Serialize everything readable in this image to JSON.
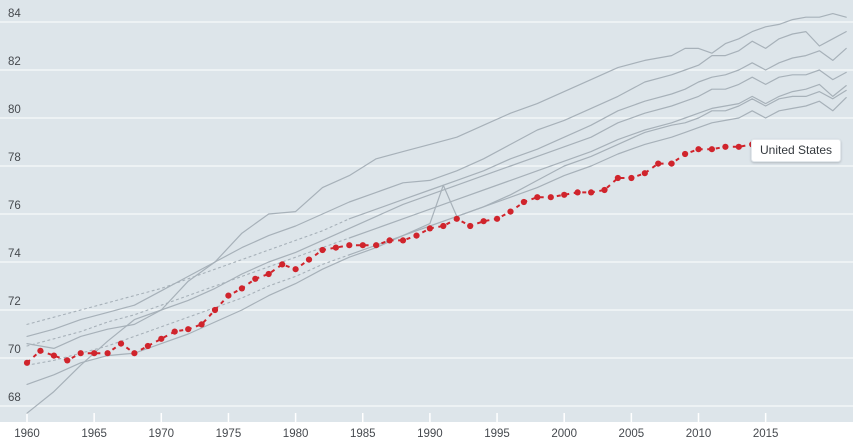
{
  "chart_data": {
    "type": "line",
    "x_axis": {
      "tick_labels": [
        1960,
        1965,
        1970,
        1975,
        1980,
        1985,
        1990,
        1995,
        2000,
        2005,
        2010,
        2015
      ],
      "range": [
        1960,
        2021.5
      ]
    },
    "y_axis": {
      "tick_labels": [
        68,
        70,
        72,
        74,
        76,
        78,
        80,
        82,
        84
      ],
      "range": [
        67.3,
        84.4
      ],
      "grid": true
    },
    "legend_position": "inline-end-label",
    "colors": {
      "plot_background": "#dde5ea",
      "gridline": "#f7fafb",
      "comparison_line": "#a7b1b9",
      "us_line": "#d0242c",
      "axis_text": "#45494e"
    },
    "series": [
      {
        "id": "united-states",
        "label": "United States",
        "style": "dashed-with-dots",
        "color": "us_line",
        "x": [
          1960,
          1961,
          1962,
          1963,
          1964,
          1965,
          1966,
          1967,
          1968,
          1969,
          1970,
          1971,
          1972,
          1973,
          1974,
          1975,
          1976,
          1977,
          1978,
          1979,
          1980,
          1981,
          1982,
          1983,
          1984,
          1985,
          1986,
          1987,
          1988,
          1989,
          1990,
          1991,
          1992,
          1993,
          1994,
          1995,
          1996,
          1997,
          1998,
          1999,
          2000,
          2001,
          2002,
          2003,
          2004,
          2005,
          2006,
          2007,
          2008,
          2009,
          2010,
          2011,
          2012,
          2013,
          2014,
          2015,
          2016,
          2017,
          2018,
          2019,
          2020
        ],
        "values": [
          69.8,
          70.3,
          70.1,
          69.9,
          70.2,
          70.2,
          70.2,
          70.6,
          70.2,
          70.5,
          70.8,
          71.1,
          71.2,
          71.4,
          72.0,
          72.6,
          72.9,
          73.3,
          73.5,
          73.9,
          73.7,
          74.1,
          74.5,
          74.6,
          74.7,
          74.7,
          74.7,
          74.9,
          74.9,
          75.1,
          75.4,
          75.5,
          75.8,
          75.5,
          75.7,
          75.8,
          76.1,
          76.5,
          76.7,
          76.7,
          76.8,
          76.9,
          76.9,
          77.0,
          77.5,
          77.5,
          77.7,
          78.1,
          78.1,
          78.5,
          78.7,
          78.7,
          78.8,
          78.8,
          78.9,
          78.7,
          78.7,
          78.6,
          78.7,
          78.8,
          78.6
        ]
      },
      {
        "id": "comparison-1",
        "label": "",
        "style": "solid",
        "color": "comparison_line",
        "x": [
          1960,
          1962,
          1964,
          1966,
          1968,
          1970,
          1972,
          1974,
          1976,
          1978,
          1980,
          1982,
          1984,
          1986,
          1988,
          1990,
          1992,
          1994,
          1996,
          1998,
          2000,
          2002,
          2004,
          2006,
          2008,
          2009,
          2010,
          2011,
          2012,
          2013,
          2014,
          2015,
          2016,
          2017,
          2018,
          2019,
          2020,
          2021
        ],
        "values": [
          67.7,
          68.6,
          69.7,
          70.7,
          71.6,
          72.0,
          73.2,
          74.0,
          75.2,
          76.0,
          76.1,
          77.1,
          77.6,
          78.3,
          78.6,
          78.9,
          79.2,
          79.7,
          80.2,
          80.6,
          81.1,
          81.6,
          82.1,
          82.4,
          82.6,
          82.9,
          82.9,
          82.7,
          83.1,
          83.3,
          83.6,
          83.8,
          83.9,
          84.1,
          84.2,
          84.2,
          84.35,
          84.2
        ]
      },
      {
        "id": "comparison-2",
        "label": "",
        "style": "solid",
        "color": "comparison_line",
        "x": [
          1960,
          1962,
          1964,
          1966,
          1968,
          1970,
          1972,
          1974,
          1976,
          1978,
          1980,
          1982,
          1984,
          1986,
          1988,
          1990,
          1992,
          1994,
          1996,
          1998,
          2000,
          2002,
          2004,
          2006,
          2008,
          2009,
          2010,
          2011,
          2012,
          2013,
          2014,
          2015,
          2016,
          2017,
          2018,
          2019,
          2020,
          2021
        ],
        "values": [
          70.9,
          71.2,
          71.6,
          71.9,
          72.2,
          72.8,
          73.4,
          74.0,
          74.6,
          75.1,
          75.5,
          76.0,
          76.5,
          76.9,
          77.3,
          77.4,
          77.8,
          78.3,
          78.9,
          79.5,
          79.9,
          80.4,
          80.9,
          81.5,
          81.8,
          82.0,
          82.2,
          82.6,
          82.6,
          82.8,
          83.2,
          82.9,
          83.3,
          83.5,
          83.6,
          83.0,
          83.3,
          83.6
        ]
      },
      {
        "id": "comparison-3-estimated",
        "label": "",
        "style": "dotted",
        "color": "comparison_line",
        "x": [
          1960,
          1962,
          1964,
          1966,
          1968,
          1970,
          1972,
          1974,
          1976,
          1978,
          1980,
          1982,
          1984
        ],
        "values": [
          71.4,
          71.7,
          72.0,
          72.3,
          72.6,
          72.9,
          73.3,
          73.7,
          74.1,
          74.5,
          74.9,
          75.3,
          75.8
        ]
      },
      {
        "id": "comparison-3",
        "label": "",
        "style": "solid",
        "color": "comparison_line",
        "x": [
          1984,
          1986,
          1988,
          1990,
          1992,
          1994,
          1996,
          1998,
          2000,
          2002,
          2004,
          2006,
          2008,
          2009,
          2010,
          2011,
          2012,
          2013,
          2014,
          2015,
          2016,
          2017,
          2018,
          2019,
          2020,
          2021
        ],
        "values": [
          75.8,
          76.2,
          76.6,
          77.0,
          77.4,
          77.8,
          78.3,
          78.7,
          79.2,
          79.7,
          80.3,
          80.7,
          81.0,
          81.2,
          81.5,
          81.7,
          81.8,
          82.0,
          82.3,
          82.0,
          82.3,
          82.5,
          82.6,
          82.8,
          82.4,
          82.9
        ]
      },
      {
        "id": "comparison-4",
        "label": "",
        "style": "solid",
        "color": "comparison_line",
        "x": [
          1960,
          1962,
          1964,
          1966,
          1968,
          1970,
          1972,
          1974,
          1976,
          1978,
          1980,
          1982,
          1984,
          1986,
          1988,
          1990,
          1992,
          1994,
          1996,
          1998,
          2000,
          2002,
          2004,
          2006,
          2008,
          2009,
          2010,
          2011,
          2012,
          2013,
          2014,
          2015,
          2016,
          2017,
          2018,
          2019,
          2020,
          2021
        ],
        "values": [
          70.6,
          70.4,
          70.9,
          71.2,
          71.4,
          72.0,
          72.4,
          72.9,
          73.5,
          74.0,
          74.4,
          74.9,
          75.4,
          75.9,
          76.4,
          76.8,
          77.2,
          77.6,
          78.0,
          78.4,
          78.8,
          79.2,
          79.8,
          80.2,
          80.5,
          80.7,
          80.9,
          81.2,
          81.2,
          81.4,
          81.7,
          81.4,
          81.7,
          81.8,
          81.8,
          82.0,
          81.6,
          81.9
        ]
      },
      {
        "id": "comparison-5-estimated",
        "label": "",
        "style": "dotted",
        "color": "comparison_line",
        "x": [
          1960,
          1962,
          1964,
          1966,
          1968,
          1970,
          1972,
          1974,
          1976,
          1978,
          1980,
          1982,
          1984
        ],
        "values": [
          70.5,
          70.8,
          71.1,
          71.5,
          71.8,
          72.2,
          72.6,
          73.0,
          73.4,
          73.8,
          74.2,
          74.6,
          75.0
        ]
      },
      {
        "id": "comparison-5",
        "label": "",
        "style": "solid",
        "color": "comparison_line",
        "x": [
          1984,
          1986,
          1988,
          1990,
          1992,
          1994,
          1996,
          1998,
          2000,
          2002,
          2004,
          2006,
          2008,
          2009,
          2010,
          2011,
          2012,
          2013,
          2014,
          2015,
          2016,
          2017,
          2018,
          2019,
          2020,
          2021
        ],
        "values": [
          75.0,
          75.4,
          75.8,
          76.2,
          76.6,
          77.0,
          77.4,
          77.8,
          78.2,
          78.6,
          79.1,
          79.5,
          79.8,
          80.0,
          80.2,
          80.4,
          80.5,
          80.6,
          80.9,
          80.6,
          80.9,
          81.1,
          81.2,
          81.4,
          80.9,
          81.35
        ]
      },
      {
        "id": "comparison-6",
        "label": "",
        "style": "solid",
        "color": "comparison_line",
        "x": [
          1960,
          1962,
          1964,
          1966,
          1968,
          1970,
          1972,
          1974,
          1976,
          1978,
          1980,
          1982,
          1984,
          1986,
          1988,
          1990,
          1991,
          1992,
          1994,
          1996,
          1998,
          2000,
          2002,
          2004,
          2006,
          2008,
          2009,
          2010,
          2011,
          2012,
          2013,
          2014,
          2015,
          2016,
          2017,
          2018,
          2019,
          2020,
          2021
        ],
        "values": [
          68.9,
          69.3,
          69.8,
          70.1,
          70.2,
          70.6,
          71.0,
          71.5,
          72.0,
          72.6,
          73.1,
          73.7,
          74.2,
          74.6,
          75.1,
          75.6,
          77.2,
          75.9,
          76.3,
          76.8,
          77.4,
          78.0,
          78.4,
          78.9,
          79.4,
          79.7,
          79.8,
          80.0,
          80.3,
          80.3,
          80.5,
          80.8,
          80.5,
          80.8,
          80.9,
          80.9,
          81.1,
          80.8,
          81.15
        ]
      },
      {
        "id": "comparison-7-estimated",
        "label": "",
        "style": "dotted",
        "color": "comparison_line",
        "x": [
          1960,
          1962,
          1964,
          1966,
          1968,
          1970,
          1972,
          1974,
          1976,
          1978,
          1980,
          1982,
          1984
        ],
        "values": [
          69.7,
          69.9,
          70.2,
          70.5,
          70.9,
          71.3,
          71.7,
          72.1,
          72.5,
          73.0,
          73.4,
          73.9,
          74.3
        ]
      },
      {
        "id": "comparison-7",
        "label": "",
        "style": "solid",
        "color": "comparison_line",
        "x": [
          1984,
          1986,
          1988,
          1990,
          1992,
          1994,
          1996,
          1998,
          2000,
          2002,
          2004,
          2006,
          2008,
          2009,
          2010,
          2011,
          2012,
          2013,
          2014,
          2015,
          2016,
          2017,
          2018,
          2019,
          2020,
          2021
        ],
        "values": [
          74.3,
          74.7,
          75.1,
          75.5,
          75.9,
          76.3,
          76.7,
          77.1,
          77.6,
          78.0,
          78.5,
          78.9,
          79.2,
          79.4,
          79.6,
          79.8,
          79.9,
          80.0,
          80.3,
          80.0,
          80.3,
          80.4,
          80.5,
          80.7,
          80.3,
          80.85
        ]
      }
    ]
  }
}
